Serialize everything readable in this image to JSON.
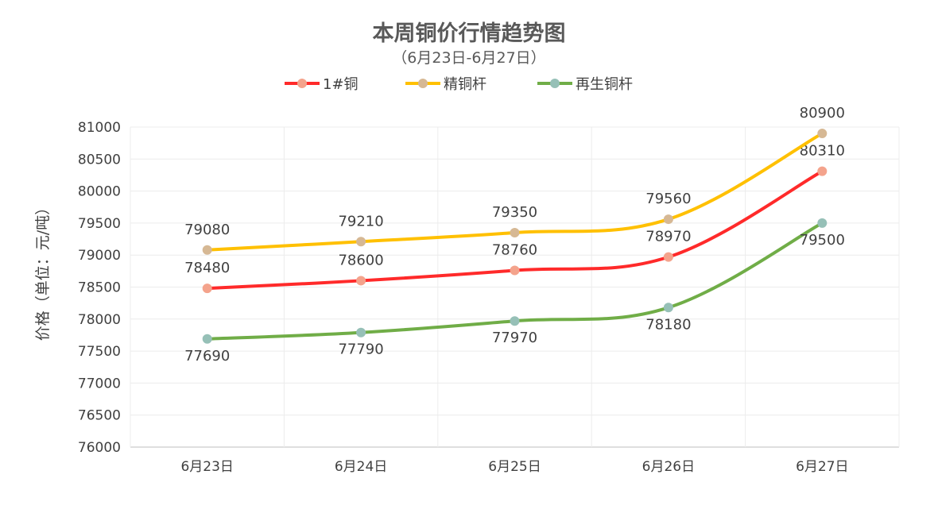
{
  "chart_data": {
    "type": "line",
    "title": "本周铜价行情趋势图",
    "subtitle": "（6月23日-6月27日）",
    "ylabel": "价格（单位：元/吨）",
    "xlabel": "",
    "categories": [
      "6月23日",
      "6月24日",
      "6月25日",
      "6月26日",
      "6月27日"
    ],
    "ylim": [
      76000,
      81000
    ],
    "ytick_step": 500,
    "grid": true,
    "legend_position": "top",
    "smooth": true,
    "series": [
      {
        "name": "1#铜",
        "values": [
          78480,
          78600,
          78760,
          78970,
          80310
        ],
        "color": "#ff2a2a",
        "marker_color": "#f4a38c",
        "label_position": "above"
      },
      {
        "name": "精铜杆",
        "values": [
          79080,
          79210,
          79350,
          79560,
          80900
        ],
        "color": "#ffc000",
        "marker_color": "#d6b894",
        "label_position": "above"
      },
      {
        "name": "再生铜杆",
        "values": [
          77690,
          77790,
          77970,
          78180,
          79500
        ],
        "color": "#70ad47",
        "marker_color": "#96c0b7",
        "label_position": "below"
      }
    ]
  }
}
